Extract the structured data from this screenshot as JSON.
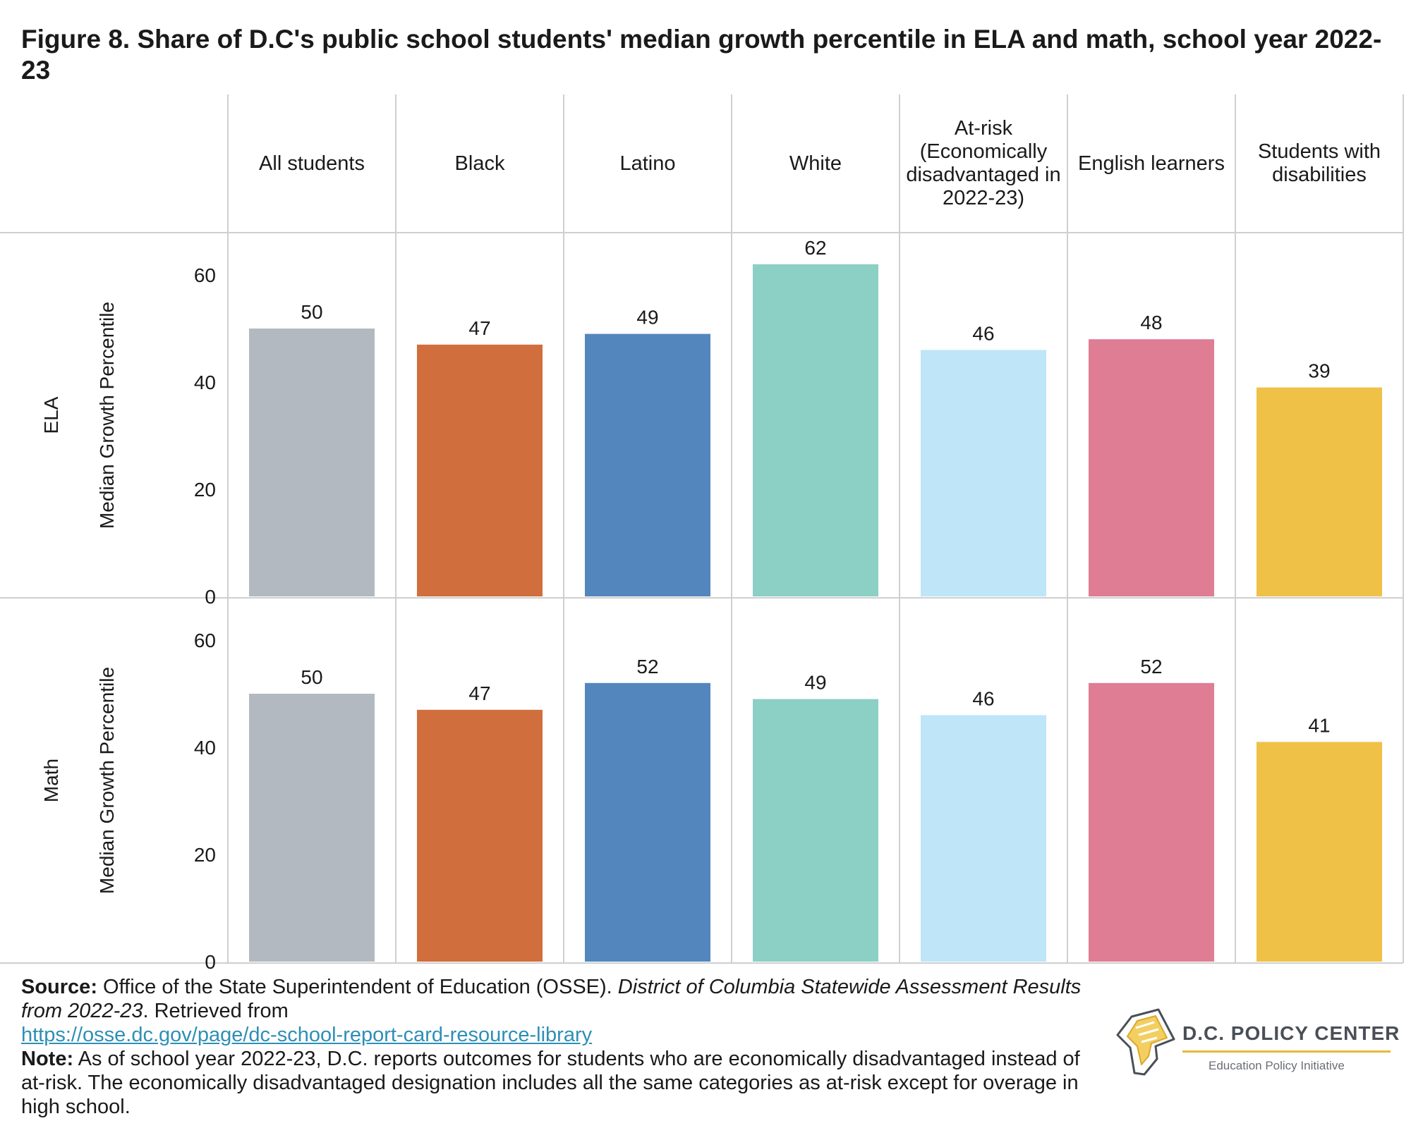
{
  "title": "Figure 8. Share of D.C's public school students' median growth percentile in ELA and math, school year 2022-23",
  "chart_data": {
    "type": "bar",
    "categories": [
      "All students",
      "Black",
      "Latino",
      "White",
      "At-risk (Economically disadvantaged in 2022-23)",
      "English learners",
      "Students with disabilities"
    ],
    "colors": [
      "#b2b9c1",
      "#d16e3d",
      "#5486be",
      "#8ccfc4",
      "#bfe5f9",
      "#df7d94",
      "#efc147"
    ],
    "ylabel": "Median Growth Percentile",
    "ylim": [
      0,
      68
    ],
    "yticks": [
      0,
      20,
      40,
      60
    ],
    "grid": false,
    "panels": [
      {
        "name": "ELA",
        "values": [
          50,
          47,
          49,
          62,
          46,
          48,
          39
        ]
      },
      {
        "name": "Math",
        "values": [
          50,
          47,
          52,
          49,
          46,
          52,
          41
        ]
      }
    ]
  },
  "footer": {
    "source_label": "Source:",
    "source_text": "Office of the State Superintendent of Education (OSSE).",
    "source_title": "District of Columbia Statewide Assessment Results from 2022-23",
    "source_retrieved": ". Retrieved from",
    "source_url": "https://osse.dc.gov/page/dc-school-report-card-resource-library",
    "note_label": "Note:",
    "note_text": "As of school year 2022-23, D.C. reports outcomes for students who are economically disadvantaged instead of at-risk. The economically disadvantaged designation includes all the same categories as at-risk except for overage in high school."
  },
  "logo": {
    "title": "D.C. POLICY CENTER",
    "subtitle": "Education Policy Initiative"
  }
}
